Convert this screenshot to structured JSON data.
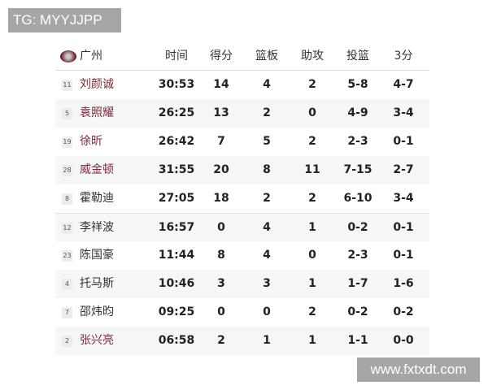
{
  "overlay": {
    "tg_label": "TG: MYYJJPP",
    "watermark": "www.fxtxdt.com"
  },
  "colors": {
    "starter_name": "#7d2a35",
    "alt_row": "#f5f6f8"
  },
  "header": {
    "team": "广州",
    "team_logo_icon": "guangzhou-team-logo",
    "columns": [
      "时间",
      "得分",
      "篮板",
      "助攻",
      "投篮",
      "3分"
    ]
  },
  "rows": [
    {
      "num": "11",
      "name": "刘颜诚",
      "starter": true,
      "min": "30:53",
      "pts": "14",
      "reb": "4",
      "ast": "2",
      "fg": "5-8",
      "tp": "4-7"
    },
    {
      "num": "5",
      "name": "袁照耀",
      "starter": true,
      "min": "26:25",
      "pts": "13",
      "reb": "2",
      "ast": "0",
      "fg": "4-9",
      "tp": "3-4"
    },
    {
      "num": "19",
      "name": "徐昕",
      "starter": true,
      "min": "26:42",
      "pts": "7",
      "reb": "5",
      "ast": "2",
      "fg": "2-3",
      "tp": "0-1"
    },
    {
      "num": "28",
      "name": "威金顿",
      "starter": true,
      "min": "31:55",
      "pts": "20",
      "reb": "8",
      "ast": "11",
      "fg": "7-15",
      "tp": "2-7"
    },
    {
      "num": "8",
      "name": "霍勒迪",
      "starter": false,
      "min": "27:05",
      "pts": "18",
      "reb": "2",
      "ast": "2",
      "fg": "6-10",
      "tp": "3-4"
    },
    {
      "num": "12",
      "name": "李祥波",
      "starter": false,
      "min": "16:57",
      "pts": "0",
      "reb": "4",
      "ast": "1",
      "fg": "0-2",
      "tp": "0-1"
    },
    {
      "num": "23",
      "name": "陈国豪",
      "starter": false,
      "min": "11:44",
      "pts": "8",
      "reb": "4",
      "ast": "0",
      "fg": "2-3",
      "tp": "0-1"
    },
    {
      "num": "4",
      "name": "托马斯",
      "starter": false,
      "min": "10:46",
      "pts": "3",
      "reb": "3",
      "ast": "1",
      "fg": "1-7",
      "tp": "1-6"
    },
    {
      "num": "7",
      "name": "邵炜昀",
      "starter": false,
      "min": "09:25",
      "pts": "0",
      "reb": "0",
      "ast": "2",
      "fg": "0-2",
      "tp": "0-2"
    },
    {
      "num": "2",
      "name": "张兴亮",
      "starter": true,
      "min": "06:58",
      "pts": "2",
      "reb": "1",
      "ast": "1",
      "fg": "1-1",
      "tp": "0-0"
    }
  ]
}
